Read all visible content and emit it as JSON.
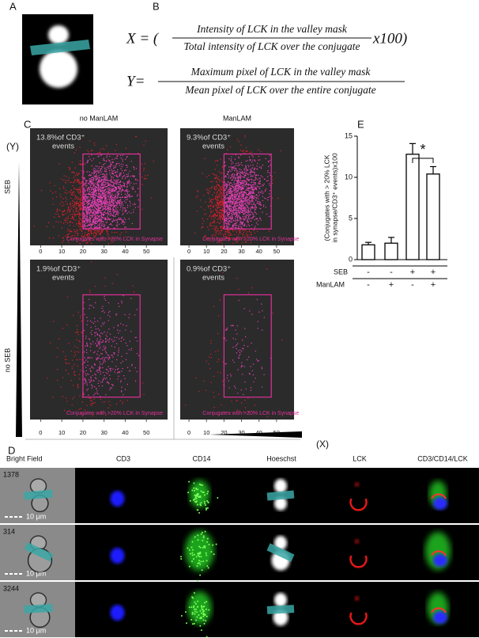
{
  "panels": {
    "a": "A",
    "b": "B",
    "c": "C",
    "d": "D",
    "e": "E"
  },
  "formula_x": {
    "lhs": "X = (",
    "numerator": "Intensity of LCK in the valley mask",
    "denominator": "Total intensity of LCK over the conjugate",
    "rhs": "x100)"
  },
  "formula_y": {
    "lhs": "Y=",
    "numerator": "Maximum pixel of LCK in the valley mask",
    "denominator": "Mean pixel of LCK over the entire conjugate"
  },
  "scatter": {
    "column_titles": [
      "no ManLAM",
      "ManLAM"
    ],
    "row_labels": [
      "SEB",
      "no SEB"
    ],
    "y_axis": "(Y)",
    "x_axis": "(X)",
    "gate_label": "Conjugates with >20% LCK in Synapse",
    "xlim": [
      -5,
      60
    ],
    "xticks": [
      0,
      10,
      20,
      30,
      40,
      50
    ],
    "plots": [
      {
        "percent": "13.8%of CD3⁺",
        "events": "events"
      },
      {
        "percent": "9.3%of CD3⁺",
        "events": "events"
      },
      {
        "percent": "1.9%of CD3⁺",
        "events": "events"
      },
      {
        "percent": "0.9%of CD3⁺",
        "events": "events"
      }
    ]
  },
  "panel_e": {
    "type": "bar",
    "ylabel": [
      "(Conjugates with > 20% LCK",
      "in synapse/CD3⁺ events)x100"
    ],
    "values": [
      1.8,
      2.0,
      12.8,
      10.4
    ],
    "errors": [
      0.3,
      0.7,
      1.3,
      0.9
    ],
    "ylim": [
      0,
      15
    ],
    "yticks": [
      0,
      5,
      10,
      15
    ],
    "factors": [
      {
        "name": "SEB",
        "levels": [
          "-",
          "-",
          "+",
          "+"
        ]
      },
      {
        "name": "ManLAM",
        "levels": [
          "-",
          "+",
          "-",
          "+"
        ]
      }
    ],
    "significance": "*"
  },
  "microscopy": {
    "columns": [
      "Bright Field",
      "CD3",
      "CD14",
      "Hoeschst",
      "LCK",
      "CD3/CD14/LCK"
    ],
    "rows": [
      {
        "id": "1378",
        "scale": "10 µm"
      },
      {
        "id": "314",
        "scale": "10 µm"
      },
      {
        "id": "3244",
        "scale": "10 µm"
      }
    ]
  }
}
